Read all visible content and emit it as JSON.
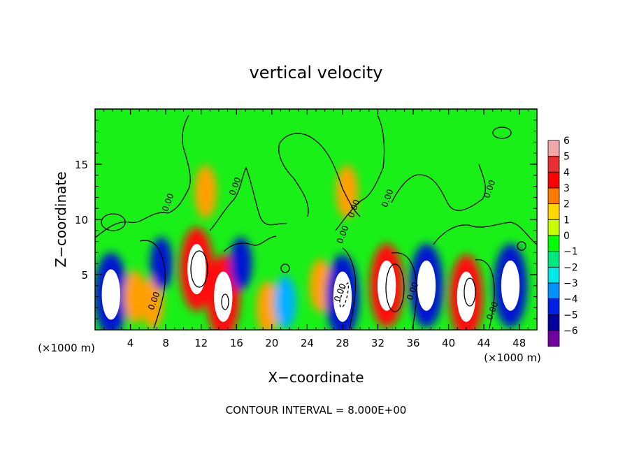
{
  "chart_data": {
    "type": "heatmap",
    "title": "vertical velocity",
    "xlabel": "X−coordinate",
    "ylabel": "Z−coordinate",
    "x_unit_left": "(×1000 m)",
    "x_unit_right": "(×1000 m)",
    "footer": "CONTOUR INTERVAL = 8.000E+00",
    "xlim": [
      0,
      50
    ],
    "ylim": [
      0,
      20
    ],
    "x_ticks": [
      "4",
      "8",
      "12",
      "16",
      "20",
      "24",
      "28",
      "32",
      "36",
      "40",
      "44",
      "48"
    ],
    "x_tick_values": [
      4,
      8,
      12,
      16,
      20,
      24,
      28,
      32,
      36,
      40,
      44,
      48
    ],
    "y_ticks": [
      "5",
      "10",
      "15"
    ],
    "y_tick_values": [
      5,
      10,
      15
    ],
    "contour_labels": [
      "0.00",
      "0.00",
      "0.00",
      "0.00",
      "0.00",
      "0.00",
      "0.00",
      "0.00",
      "0.00",
      "0.00"
    ],
    "colorbar": {
      "tick_labels": [
        "6",
        "5",
        "4",
        "3",
        "2",
        "1",
        "0",
        "−1",
        "−2",
        "−3",
        "−4",
        "−5",
        "−6"
      ],
      "levels": [
        6,
        5,
        4,
        3,
        2,
        1,
        0,
        -1,
        -2,
        -3,
        -4,
        -5,
        -6
      ],
      "colors": [
        "#f0a8a8",
        "#e83030",
        "#ff0000",
        "#ff7a00",
        "#ffd800",
        "#c8ff00",
        "#00ff00",
        "#00e880",
        "#00e8e8",
        "#0090ff",
        "#0020e8",
        "#0000a0",
        "#7000a0"
      ],
      "over_color": "#ffffff"
    },
    "cells": [
      {
        "x": 1.8,
        "z": 3.2,
        "w": -6.5
      },
      {
        "x": 4.5,
        "z": 3.0,
        "w": 3.0
      },
      {
        "x": 6.5,
        "z": 2.5,
        "w": 3.5
      },
      {
        "x": 7.5,
        "z": 6.0,
        "w": -4.5
      },
      {
        "x": 11.5,
        "z": 5.5,
        "w": 7.0
      },
      {
        "x": 14.5,
        "z": 3.0,
        "w": 6.5
      },
      {
        "x": 16.5,
        "z": 6.0,
        "w": -4.5
      },
      {
        "x": 19.5,
        "z": 2.0,
        "w": 3.5
      },
      {
        "x": 21.5,
        "z": 2.5,
        "w": -4.0
      },
      {
        "x": 25.5,
        "z": 4.0,
        "w": 3.0
      },
      {
        "x": 28.0,
        "z": 3.0,
        "w": -6.5
      },
      {
        "x": 33.0,
        "z": 4.0,
        "w": 7.0
      },
      {
        "x": 37.5,
        "z": 4.0,
        "w": -6.5
      },
      {
        "x": 42.0,
        "z": 3.0,
        "w": 7.0
      },
      {
        "x": 47.0,
        "z": 4.0,
        "w": -7.0
      },
      {
        "x": 12.5,
        "z": 12.5,
        "w": 1.2
      },
      {
        "x": 28.5,
        "z": 12.5,
        "w": 1.5
      }
    ]
  }
}
